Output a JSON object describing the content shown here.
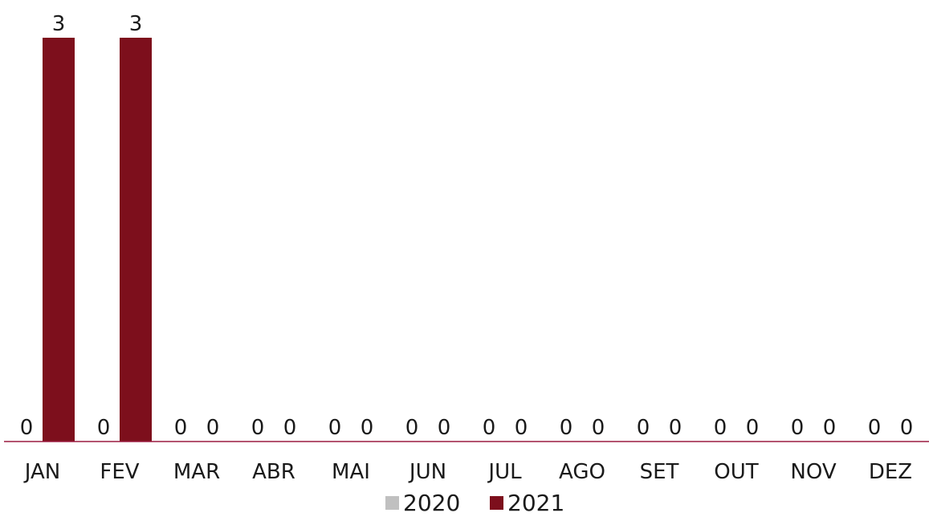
{
  "chart_data": {
    "type": "bar",
    "categories": [
      "JAN",
      "FEV",
      "MAR",
      "ABR",
      "MAI",
      "JUN",
      "JUL",
      "AGO",
      "SET",
      "OUT",
      "NOV",
      "DEZ"
    ],
    "series": [
      {
        "name": "2020",
        "values": [
          0,
          0,
          0,
          0,
          0,
          0,
          0,
          0,
          0,
          0,
          0,
          0
        ],
        "color": "#c0c0c0"
      },
      {
        "name": "2021",
        "values": [
          3,
          3,
          0,
          0,
          0,
          0,
          0,
          0,
          0,
          0,
          0,
          0
        ],
        "color": "#7d0f1c"
      }
    ],
    "ylim": [
      0,
      3
    ],
    "grid": false,
    "legend": "bottom",
    "axis_color": "#9b1b40"
  }
}
